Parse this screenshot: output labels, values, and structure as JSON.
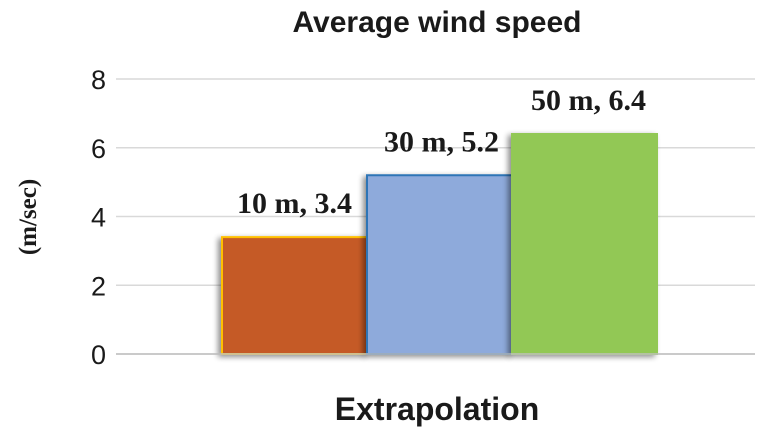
{
  "chart_data": {
    "type": "bar",
    "title": "Average wind speed",
    "xlabel": "Extrapolation",
    "ylabel": "(m/sec)",
    "ylim": [
      0,
      8
    ],
    "yticks": [
      0,
      2,
      4,
      6,
      8
    ],
    "grid": true,
    "legend": "none",
    "categories": [
      "10 m",
      "30 m",
      "50 m"
    ],
    "values": [
      3.4,
      5.2,
      6.4
    ],
    "data_labels": [
      "10 m, 3.4",
      "30 m, 5.2",
      "50 m, 6.4"
    ],
    "colors": {
      "fills": [
        "#c55a28",
        "#8eaadb",
        "#92c854"
      ],
      "borders": [
        "#ffc000",
        "#2e75b6",
        "#92c854"
      ],
      "gridline": "#d9d9d9",
      "axis": "#bfbfbf",
      "text": "#1a1a1a"
    }
  }
}
